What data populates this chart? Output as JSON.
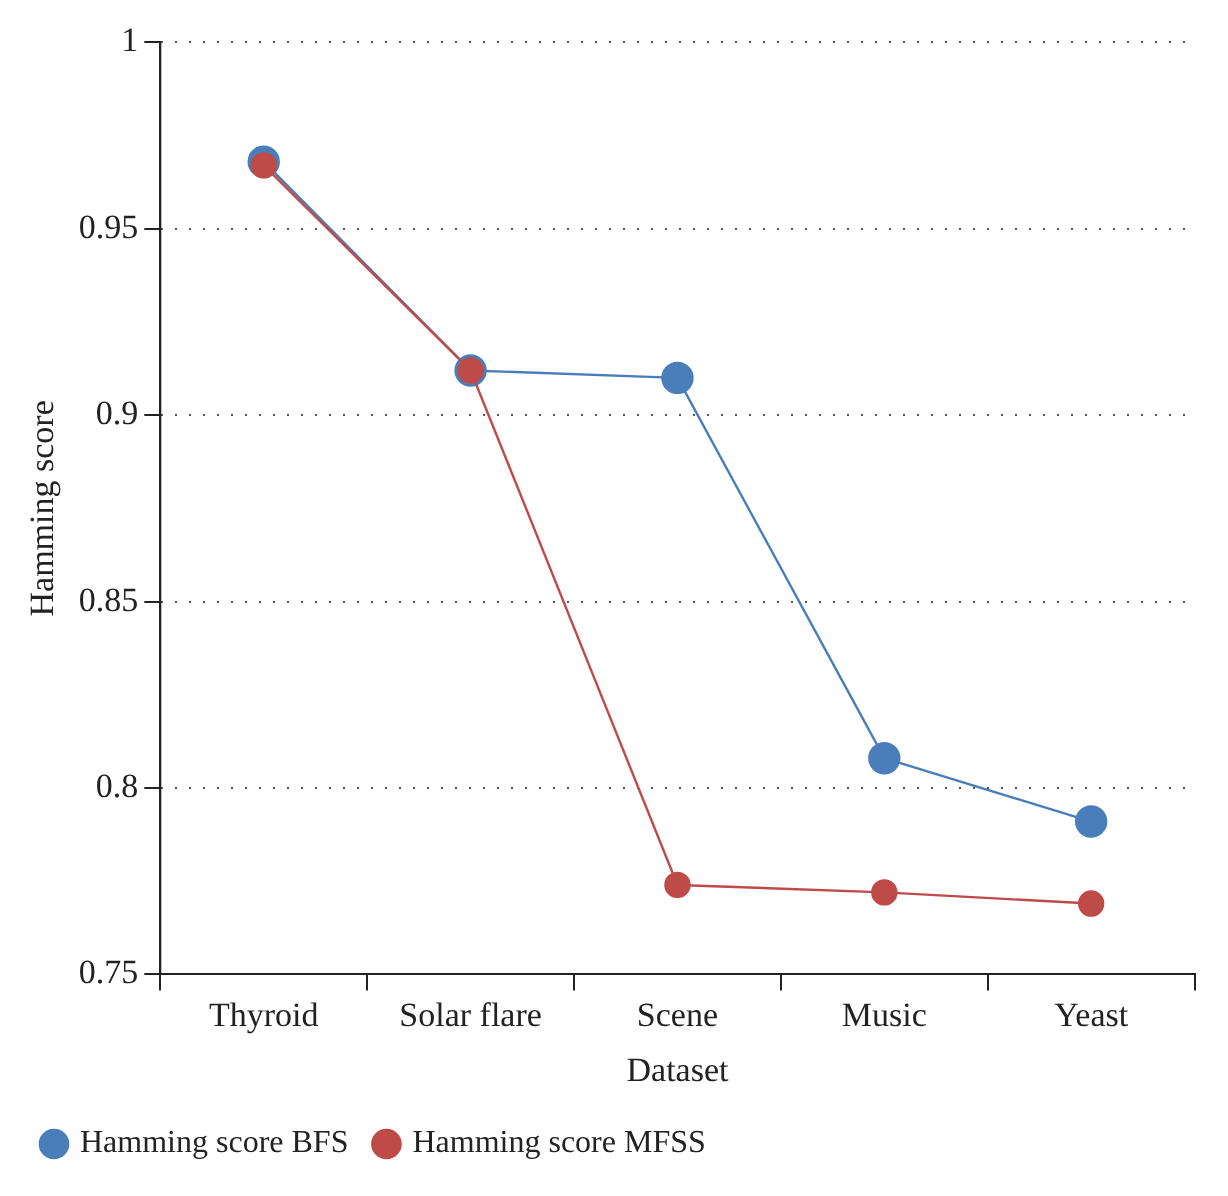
{
  "chart_data": {
    "type": "line",
    "xlabel": "Dataset",
    "ylabel": "Hamming score",
    "categories": [
      "Thyroid",
      "Solar flare",
      "Scene",
      "Music",
      "Yeast"
    ],
    "series": [
      {
        "name": "Hamming score BFS",
        "color": "#4a7ebb",
        "values": [
          0.968,
          0.912,
          0.91,
          0.808,
          0.791
        ]
      },
      {
        "name": "Hamming score MFSS",
        "color": "#be4b48",
        "values": [
          0.967,
          0.912,
          0.774,
          0.772,
          0.769
        ]
      }
    ],
    "ylim": [
      0.75,
      1
    ],
    "yticks": [
      0.75,
      0.8,
      0.85,
      0.9,
      0.95,
      1
    ],
    "grid": "y",
    "legend": "bottom left",
    "marker": "circle",
    "line_style": "solid"
  }
}
